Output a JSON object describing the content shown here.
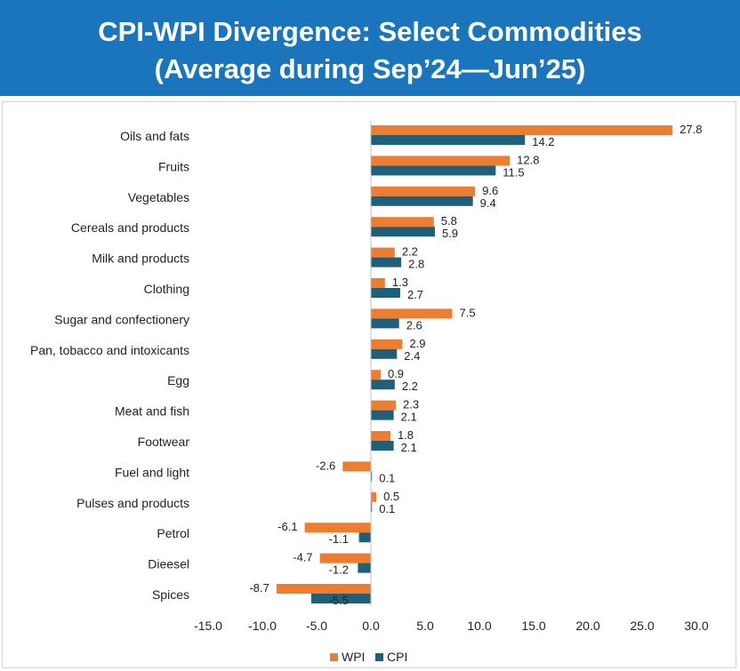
{
  "header": {
    "title_line1": "CPI-WPI Divergence: Select Commodities",
    "title_line2": "(Average during Sep’24—Jun’25)"
  },
  "colors": {
    "wpi": "#ed7d31",
    "cpi": "#1f5f7a",
    "header_bg": "#1a75bc"
  },
  "chart_data": {
    "type": "bar",
    "orientation": "horizontal",
    "categories": [
      "Oils and fats",
      "Fruits",
      "Vegetables",
      "Cereals and products",
      "Milk and products",
      "Clothing",
      "Sugar and confectionery",
      "Pan, tobacco and intoxicants",
      "Egg",
      "Meat and fish",
      "Footwear",
      "Fuel and light",
      "Pulses and products",
      "Petrol",
      "Dieesel",
      "Spices"
    ],
    "series": [
      {
        "name": "WPI",
        "values": [
          27.8,
          12.8,
          9.6,
          5.8,
          2.2,
          1.3,
          7.5,
          2.9,
          0.9,
          2.3,
          1.8,
          -2.6,
          0.5,
          -6.1,
          -4.7,
          -8.7
        ]
      },
      {
        "name": "CPI",
        "values": [
          14.2,
          11.5,
          9.4,
          5.9,
          2.8,
          2.7,
          2.6,
          2.4,
          2.2,
          2.1,
          2.1,
          0.1,
          0.1,
          -1.1,
          -1.2,
          -5.5
        ]
      }
    ],
    "x_ticks": [
      "-15.0",
      "-10.0",
      "-5.0",
      "0.0",
      "5.0",
      "10.0",
      "15.0",
      "20.0",
      "25.0",
      "30.0"
    ],
    "xlim": [
      -15,
      30
    ],
    "grid": false,
    "legend_position": "bottom"
  }
}
